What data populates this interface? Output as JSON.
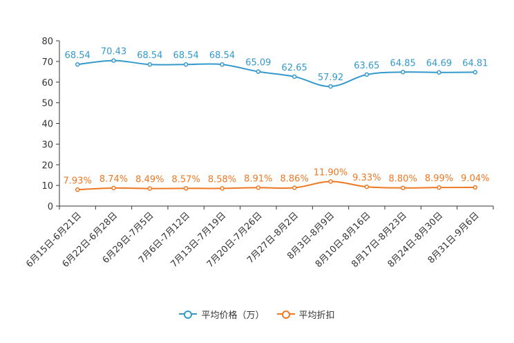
{
  "chart_data": {
    "type": "line",
    "categories": [
      "6月15日-6月21日",
      "6月22日-6月28日",
      "6月29日-7月5日",
      "7月6日-7月12日",
      "7月13日-7月19日",
      "7月20日-7月26日",
      "7月27日-8月2日",
      "8月3日-8月9日",
      "8月10日-8月16日",
      "8月17日-8月23日",
      "8月24日-8月30日",
      "8月31日-9月6日"
    ],
    "y_ticks": [
      "0",
      "10",
      "20",
      "30",
      "40",
      "50",
      "60",
      "70",
      "80"
    ],
    "ylim": [
      0,
      80
    ],
    "series": [
      {
        "name": "平均价格（万）",
        "color": "#3399cc",
        "values": [
          68.54,
          70.43,
          68.54,
          68.54,
          68.54,
          65.09,
          62.65,
          57.92,
          63.65,
          64.85,
          64.69,
          64.81
        ],
        "labels": [
          "68.54",
          "70.43",
          "68.54",
          "68.54",
          "68.54",
          "65.09",
          "62.65",
          "57.92",
          "63.65",
          "64.85",
          "64.69",
          "64.81"
        ]
      },
      {
        "name": "平均折扣",
        "color": "#ee7722",
        "values": [
          7.93,
          8.74,
          8.49,
          8.57,
          8.58,
          8.91,
          8.86,
          11.9,
          9.33,
          8.8,
          8.99,
          9.04
        ],
        "labels": [
          "7.93%",
          "8.74%",
          "8.49%",
          "8.57%",
          "8.58%",
          "8.91%",
          "8.86%",
          "11.90%",
          "9.33%",
          "8.80%",
          "8.99%",
          "9.04%"
        ]
      }
    ],
    "grid": false,
    "legend_position": "bottom"
  }
}
